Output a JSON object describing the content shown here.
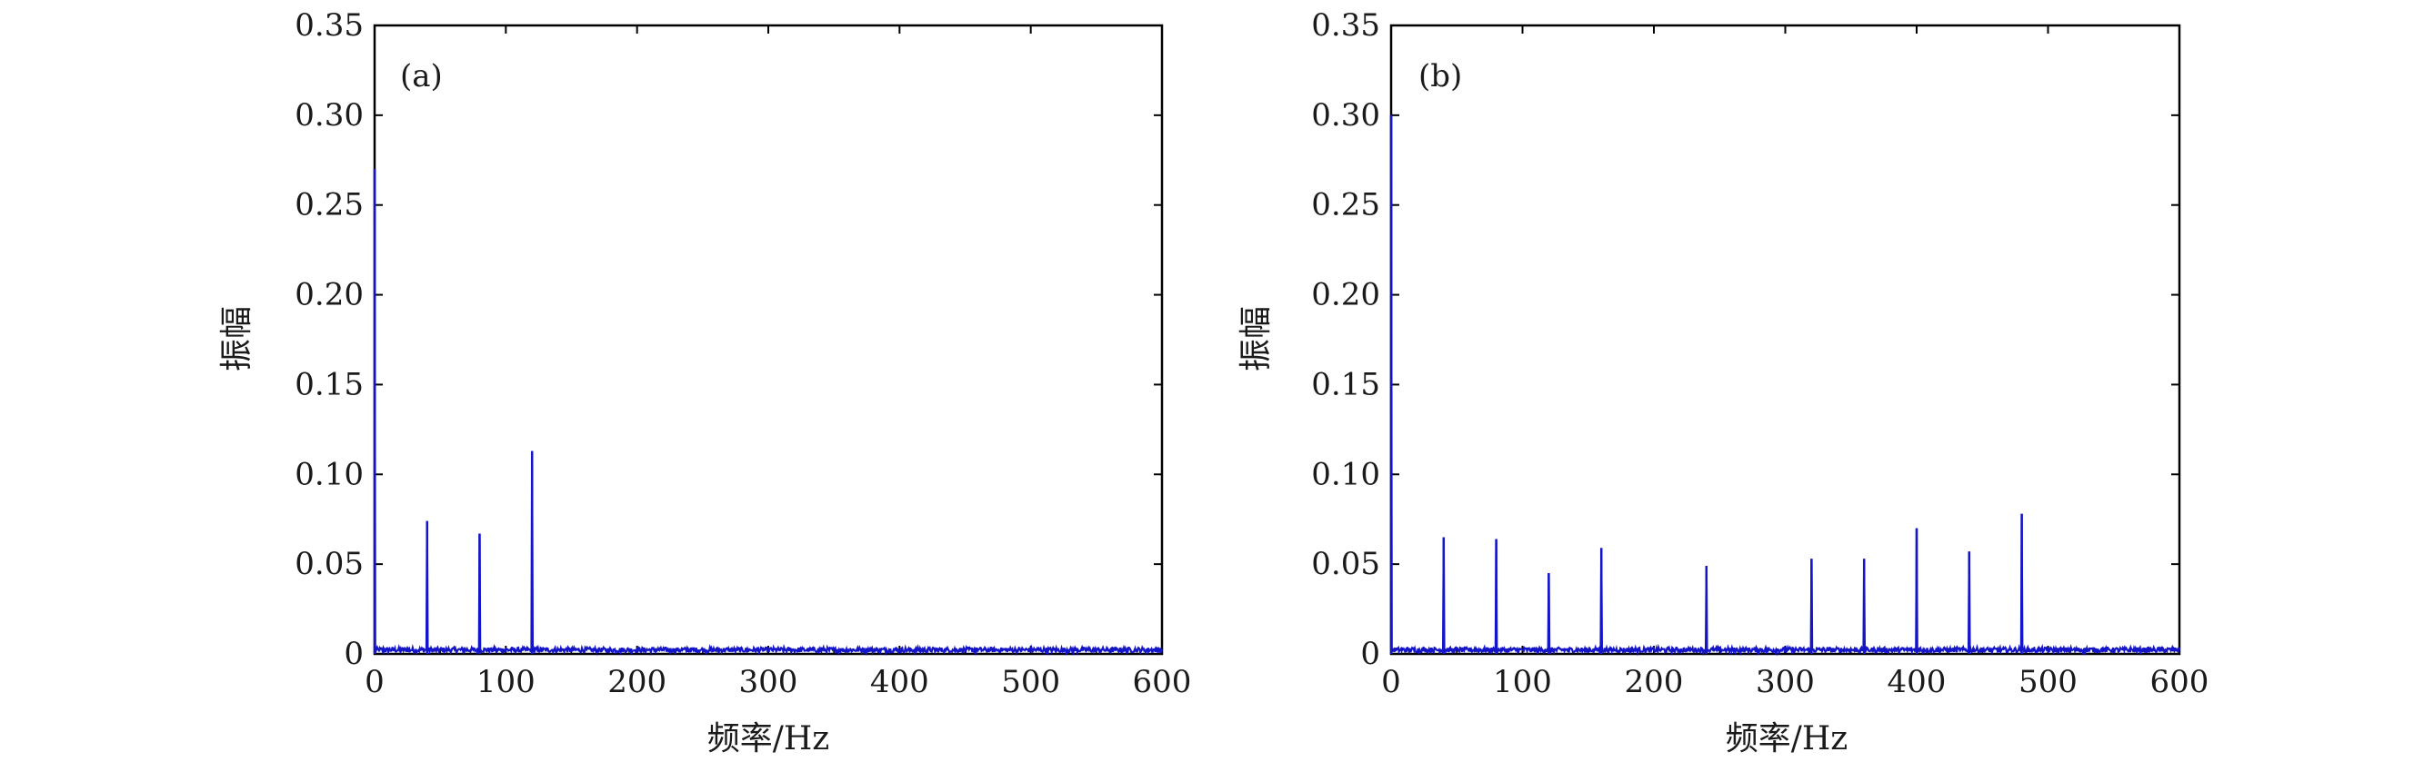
{
  "chart_data": [
    {
      "type": "line",
      "panel_label": "(a)",
      "xlabel": "频率/Hz",
      "ylabel": "振幅",
      "xlim": [
        0,
        600
      ],
      "ylim": [
        0,
        0.35
      ],
      "xticks": [
        "0",
        "100",
        "200",
        "300",
        "400",
        "500",
        "600"
      ],
      "yticks": [
        "0",
        "0.05",
        "0.10",
        "0.15",
        "0.20",
        "0.25",
        "0.30",
        "0.35"
      ],
      "grid": false,
      "line_color": "#1515c8",
      "noise_floor": 0.003,
      "peaks": {
        "x": [
          0,
          40,
          80,
          120
        ],
        "y": [
          0.27,
          0.074,
          0.067,
          0.113
        ]
      }
    },
    {
      "type": "line",
      "panel_label": "(b)",
      "xlabel": "频率/Hz",
      "ylabel": "振幅",
      "xlim": [
        0,
        600
      ],
      "ylim": [
        0,
        0.35
      ],
      "xticks": [
        "0",
        "100",
        "200",
        "300",
        "400",
        "500",
        "600"
      ],
      "yticks": [
        "0",
        "0.05",
        "0.10",
        "0.15",
        "0.20",
        "0.25",
        "0.30",
        "0.35"
      ],
      "grid": false,
      "line_color": "#1515c8",
      "noise_floor": 0.003,
      "peaks": {
        "x": [
          0,
          40,
          80,
          120,
          160,
          240,
          320,
          360,
          400,
          440,
          480
        ],
        "y": [
          0.3,
          0.065,
          0.064,
          0.045,
          0.059,
          0.049,
          0.053,
          0.053,
          0.07,
          0.057,
          0.078
        ]
      }
    }
  ]
}
